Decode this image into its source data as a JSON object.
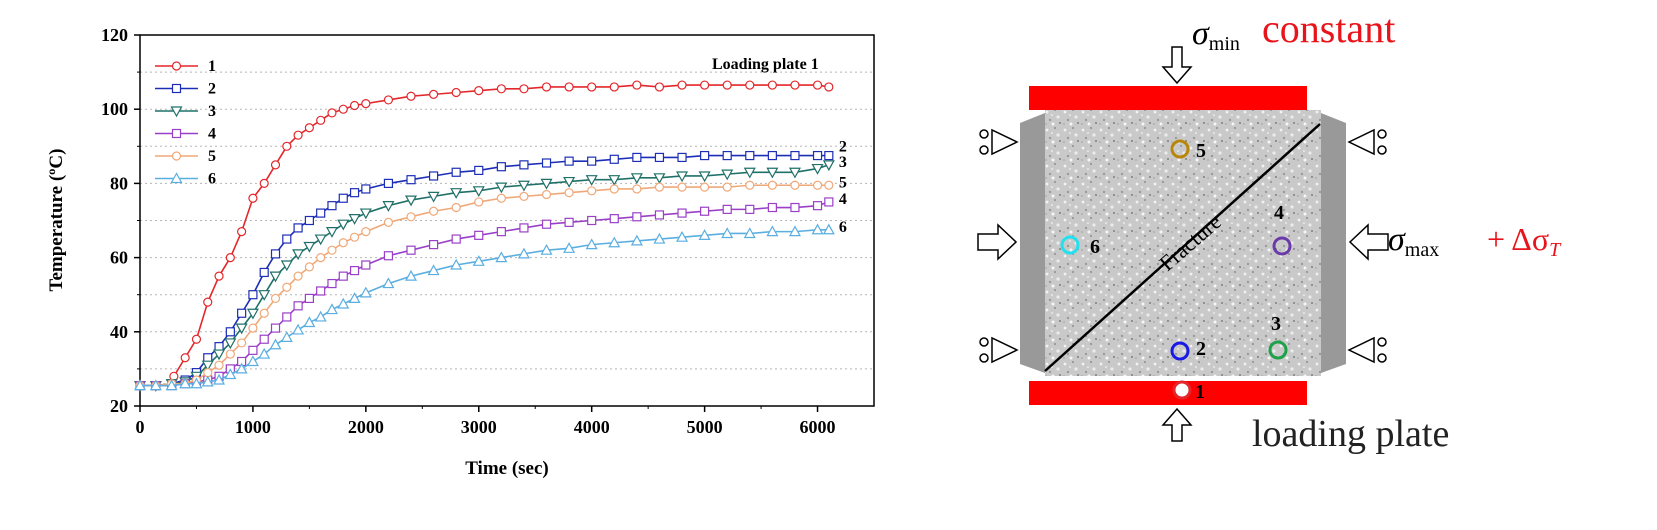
{
  "chart_data": {
    "type": "line",
    "xlabel": "Time (sec)",
    "ylabel": "Temperature (ºC)",
    "xlim": [
      0,
      6500
    ],
    "ylim": [
      20,
      120
    ],
    "xticks": [
      "0",
      "1000",
      "2000",
      "3000",
      "4000",
      "5000",
      "6000"
    ],
    "yticks": [
      "20",
      "40",
      "60",
      "80",
      "100",
      "120"
    ],
    "grid": "horizontal dotted",
    "annotation": "Loading plate  1",
    "series": [
      {
        "name": "1",
        "color": "#e3272b",
        "marker": "circle",
        "end_label": "",
        "points": [
          [
            0,
            25.5
          ],
          [
            140,
            25.5
          ],
          [
            280,
            26
          ],
          [
            300,
            28
          ],
          [
            400,
            33
          ],
          [
            500,
            38
          ],
          [
            600,
            48
          ],
          [
            700,
            55
          ],
          [
            800,
            60
          ],
          [
            900,
            67
          ],
          [
            1000,
            76
          ],
          [
            1100,
            80
          ],
          [
            1200,
            85
          ],
          [
            1300,
            90
          ],
          [
            1400,
            93
          ],
          [
            1500,
            95
          ],
          [
            1600,
            97
          ],
          [
            1700,
            99
          ],
          [
            1800,
            100
          ],
          [
            1900,
            101
          ],
          [
            2000,
            101.5
          ],
          [
            2200,
            102.5
          ],
          [
            2400,
            103.5
          ],
          [
            2600,
            104
          ],
          [
            2800,
            104.5
          ],
          [
            3000,
            105
          ],
          [
            3200,
            105.5
          ],
          [
            3400,
            105.5
          ],
          [
            3600,
            106
          ],
          [
            3800,
            106
          ],
          [
            4000,
            106
          ],
          [
            4200,
            106
          ],
          [
            4400,
            106.5
          ],
          [
            4600,
            106
          ],
          [
            4800,
            106.5
          ],
          [
            5000,
            106.5
          ],
          [
            5200,
            106.5
          ],
          [
            5400,
            106.5
          ],
          [
            5600,
            106.5
          ],
          [
            5800,
            106.5
          ],
          [
            6000,
            106.5
          ],
          [
            6100,
            106
          ]
        ]
      },
      {
        "name": "2",
        "color": "#1d2eb6",
        "marker": "square",
        "end_label": "2",
        "points": [
          [
            0,
            25.5
          ],
          [
            140,
            25.5
          ],
          [
            280,
            26
          ],
          [
            400,
            27
          ],
          [
            500,
            29
          ],
          [
            600,
            33
          ],
          [
            700,
            36
          ],
          [
            800,
            40
          ],
          [
            900,
            45
          ],
          [
            1000,
            50
          ],
          [
            1100,
            56
          ],
          [
            1200,
            61
          ],
          [
            1300,
            65
          ],
          [
            1400,
            68
          ],
          [
            1500,
            70
          ],
          [
            1600,
            72
          ],
          [
            1700,
            74
          ],
          [
            1800,
            76
          ],
          [
            1900,
            77.5
          ],
          [
            2000,
            78.5
          ],
          [
            2200,
            80
          ],
          [
            2400,
            81
          ],
          [
            2600,
            82
          ],
          [
            2800,
            83
          ],
          [
            3000,
            83.5
          ],
          [
            3200,
            84.5
          ],
          [
            3400,
            85
          ],
          [
            3600,
            85.5
          ],
          [
            3800,
            86
          ],
          [
            4000,
            86
          ],
          [
            4200,
            86.5
          ],
          [
            4400,
            87
          ],
          [
            4600,
            87
          ],
          [
            4800,
            87
          ],
          [
            5000,
            87.5
          ],
          [
            5200,
            87.5
          ],
          [
            5400,
            87.5
          ],
          [
            5600,
            87.5
          ],
          [
            5800,
            87.5
          ],
          [
            6000,
            87.5
          ],
          [
            6100,
            87.5
          ]
        ]
      },
      {
        "name": "3",
        "color": "#1f7068",
        "marker": "triangle-down",
        "end_label": "3",
        "points": [
          [
            0,
            25.5
          ],
          [
            140,
            25.5
          ],
          [
            280,
            26
          ],
          [
            400,
            26.5
          ],
          [
            500,
            28
          ],
          [
            600,
            31
          ],
          [
            700,
            34
          ],
          [
            800,
            37
          ],
          [
            900,
            41
          ],
          [
            1000,
            45
          ],
          [
            1100,
            50
          ],
          [
            1200,
            55
          ],
          [
            1300,
            58
          ],
          [
            1400,
            61
          ],
          [
            1500,
            63
          ],
          [
            1600,
            65
          ],
          [
            1700,
            67
          ],
          [
            1800,
            69
          ],
          [
            1900,
            70.5
          ],
          [
            2000,
            72
          ],
          [
            2200,
            74
          ],
          [
            2400,
            75.5
          ],
          [
            2600,
            76.5
          ],
          [
            2800,
            77.5
          ],
          [
            3000,
            78
          ],
          [
            3200,
            79
          ],
          [
            3400,
            79.5
          ],
          [
            3600,
            80
          ],
          [
            3800,
            80.5
          ],
          [
            4000,
            81
          ],
          [
            4200,
            81
          ],
          [
            4400,
            81.5
          ],
          [
            4600,
            81.5
          ],
          [
            4800,
            82
          ],
          [
            5000,
            82
          ],
          [
            5200,
            82.5
          ],
          [
            5400,
            83
          ],
          [
            5600,
            83
          ],
          [
            5800,
            83
          ],
          [
            6000,
            84
          ],
          [
            6100,
            85
          ]
        ]
      },
      {
        "name": "4",
        "color": "#9a3fc7",
        "marker": "square",
        "end_label": "4",
        "points": [
          [
            0,
            25.5
          ],
          [
            140,
            25.5
          ],
          [
            280,
            25.5
          ],
          [
            400,
            26
          ],
          [
            500,
            26.5
          ],
          [
            600,
            27
          ],
          [
            700,
            28
          ],
          [
            800,
            30
          ],
          [
            900,
            32
          ],
          [
            1000,
            35
          ],
          [
            1100,
            38
          ],
          [
            1200,
            41
          ],
          [
            1300,
            44
          ],
          [
            1400,
            47
          ],
          [
            1500,
            49
          ],
          [
            1600,
            51
          ],
          [
            1700,
            53
          ],
          [
            1800,
            55
          ],
          [
            1900,
            56.5
          ],
          [
            2000,
            58
          ],
          [
            2200,
            60.5
          ],
          [
            2400,
            62
          ],
          [
            2600,
            63.5
          ],
          [
            2800,
            65
          ],
          [
            3000,
            66
          ],
          [
            3200,
            67
          ],
          [
            3400,
            68
          ],
          [
            3600,
            69
          ],
          [
            3800,
            69.5
          ],
          [
            4000,
            70
          ],
          [
            4200,
            70.5
          ],
          [
            4400,
            71
          ],
          [
            4600,
            71.5
          ],
          [
            4800,
            72
          ],
          [
            5000,
            72.5
          ],
          [
            5200,
            73
          ],
          [
            5400,
            73
          ],
          [
            5600,
            73.5
          ],
          [
            5800,
            73.5
          ],
          [
            6000,
            74
          ],
          [
            6100,
            75
          ]
        ]
      },
      {
        "name": "5",
        "color": "#f0a878",
        "marker": "circle",
        "end_label": "5",
        "points": [
          [
            0,
            25.5
          ],
          [
            140,
            25.5
          ],
          [
            280,
            26
          ],
          [
            400,
            26
          ],
          [
            500,
            27
          ],
          [
            600,
            29
          ],
          [
            700,
            31
          ],
          [
            800,
            34
          ],
          [
            900,
            37
          ],
          [
            1000,
            41
          ],
          [
            1100,
            45
          ],
          [
            1200,
            49
          ],
          [
            1300,
            52
          ],
          [
            1400,
            55
          ],
          [
            1500,
            57.5
          ],
          [
            1600,
            60
          ],
          [
            1700,
            62
          ],
          [
            1800,
            64
          ],
          [
            1900,
            65.5
          ],
          [
            2000,
            67
          ],
          [
            2200,
            69.5
          ],
          [
            2400,
            71
          ],
          [
            2600,
            72.5
          ],
          [
            2800,
            73.5
          ],
          [
            3000,
            75
          ],
          [
            3200,
            76
          ],
          [
            3400,
            76.5
          ],
          [
            3600,
            77
          ],
          [
            3800,
            77.5
          ],
          [
            4000,
            78
          ],
          [
            4200,
            78.5
          ],
          [
            4400,
            78.5
          ],
          [
            4600,
            79
          ],
          [
            4800,
            79
          ],
          [
            5000,
            79
          ],
          [
            5200,
            79
          ],
          [
            5400,
            79.5
          ],
          [
            5600,
            79.5
          ],
          [
            5800,
            79.5
          ],
          [
            6000,
            79.5
          ],
          [
            6100,
            79.5
          ]
        ]
      },
      {
        "name": "6",
        "color": "#5aaee0",
        "marker": "triangle-up",
        "end_label": "6",
        "points": [
          [
            0,
            25.5
          ],
          [
            140,
            25.5
          ],
          [
            280,
            25.5
          ],
          [
            400,
            26
          ],
          [
            500,
            26
          ],
          [
            600,
            26.5
          ],
          [
            700,
            27
          ],
          [
            800,
            28.5
          ],
          [
            900,
            30
          ],
          [
            1000,
            32
          ],
          [
            1100,
            34
          ],
          [
            1200,
            36.5
          ],
          [
            1300,
            38.5
          ],
          [
            1400,
            40.5
          ],
          [
            1500,
            42.5
          ],
          [
            1600,
            44
          ],
          [
            1700,
            46
          ],
          [
            1800,
            47.5
          ],
          [
            1900,
            49
          ],
          [
            2000,
            50.5
          ],
          [
            2200,
            53
          ],
          [
            2400,
            55
          ],
          [
            2600,
            56.5
          ],
          [
            2800,
            58
          ],
          [
            3000,
            59
          ],
          [
            3200,
            60
          ],
          [
            3400,
            61
          ],
          [
            3600,
            62
          ],
          [
            3800,
            62.5
          ],
          [
            4000,
            63.5
          ],
          [
            4200,
            64
          ],
          [
            4400,
            64.5
          ],
          [
            4600,
            65
          ],
          [
            4800,
            65.5
          ],
          [
            5000,
            66
          ],
          [
            5200,
            66.5
          ],
          [
            5400,
            66.5
          ],
          [
            5600,
            67
          ],
          [
            5800,
            67
          ],
          [
            6000,
            67.5
          ],
          [
            6100,
            67.5
          ]
        ]
      }
    ]
  },
  "diagram": {
    "top_label": "constant",
    "sigma_min": "σ",
    "sigma_min_sub": "min",
    "sigma_max": "σ",
    "sigma_max_sub": "max",
    "delta_term": "+ Δσ",
    "delta_sub": "T",
    "fracture_label": "Fracture",
    "bottom_label": "loading plate",
    "colors": {
      "plate": "#ff0000",
      "side_plate": "#999999",
      "sigma_text": "#e8141b"
    },
    "sensors": [
      {
        "id": "1",
        "color": "#e3272b"
      },
      {
        "id": "2",
        "color": "#1a1ae6"
      },
      {
        "id": "3",
        "color": "#1da24a"
      },
      {
        "id": "4",
        "color": "#6a3aa8"
      },
      {
        "id": "5",
        "color": "#b8860b"
      },
      {
        "id": "6",
        "color": "#22e0ee"
      }
    ]
  }
}
